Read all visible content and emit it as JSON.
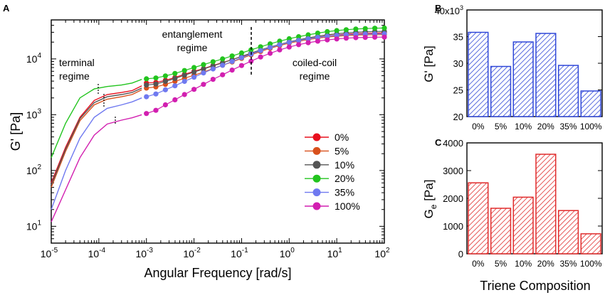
{
  "chart_data": [
    {
      "panel_label": "A",
      "type": "line",
      "xscale": "log",
      "yscale": "log",
      "xlim": [
        1e-05,
        100
      ],
      "ylim": [
        5,
        50000
      ],
      "xlabel": "Angular Frequency [rad/s]",
      "ylabel": "G' [Pa]",
      "x_tick_labels": [
        {
          "base": "10",
          "exp": "-5"
        },
        {
          "base": "10",
          "exp": "-4"
        },
        {
          "base": "10",
          "exp": "-3"
        },
        {
          "base": "10",
          "exp": "-2"
        },
        {
          "base": "10",
          "exp": "-1"
        },
        {
          "base": "10",
          "exp": "0"
        },
        {
          "base": "10",
          "exp": "1"
        },
        {
          "base": "10",
          "exp": "2"
        }
      ],
      "y_tick_labels": [
        {
          "base": "10",
          "exp": "1"
        },
        {
          "base": "10",
          "exp": "2"
        },
        {
          "base": "10",
          "exp": "3"
        },
        {
          "base": "10",
          "exp": "4"
        }
      ],
      "annotations": [
        {
          "line1": "terminal",
          "line2": "regime"
        },
        {
          "line1": "entanglement",
          "line2": "regime"
        },
        {
          "line1": "coiled-coil",
          "line2": "regime"
        }
      ],
      "legend_position": "lower-right",
      "series": [
        {
          "name": "0%",
          "color": "#e8101e",
          "markers": {
            "x": [
              0.001,
              0.00158,
              0.00251,
              0.00398,
              0.00631,
              0.01,
              0.0158,
              0.0251,
              0.0398,
              0.0631,
              0.1,
              0.158,
              0.251,
              0.398,
              0.631,
              1.0,
              1.58,
              2.51,
              3.98,
              6.31,
              10,
              15.8,
              25.1,
              39.8,
              63.1,
              100
            ],
            "y": [
              3700,
              3800,
              4150,
              4650,
              5300,
              6000,
              6700,
              7600,
              8600,
              9700,
              11000,
              12500,
              14300,
              16000,
              18000,
              20000,
              21500,
              23000,
              24500,
              25800,
              26800,
              27800,
              28400,
              28800,
              29100,
              29300
            ]
          },
          "fit_curve": {
            "x": [
              1e-05,
              2e-05,
              4e-05,
              8e-05,
              0.00015,
              0.0003,
              0.0005,
              0.0008
            ],
            "y": [
              60,
              260,
              900,
              1800,
              2300,
              2500,
              2700,
              3300
            ]
          }
        },
        {
          "name": "5%",
          "color": "#d8501c",
          "markers": {
            "x": [
              0.001,
              0.00158,
              0.00251,
              0.00398,
              0.00631,
              0.01,
              0.0158,
              0.0251,
              0.0398,
              0.0631,
              0.1,
              0.158,
              0.251,
              0.398,
              0.631,
              1.0,
              1.58,
              2.51,
              3.98,
              6.31,
              10,
              15.8,
              25.1,
              39.8,
              63.1,
              100
            ],
            "y": [
              3000,
              3150,
              3500,
              3950,
              4500,
              5100,
              5800,
              6700,
              7700,
              8800,
              10200,
              11800,
              13600,
              15500,
              17300,
              19200,
              20800,
              22200,
              23500,
              24600,
              25500,
              26200,
              26700,
              27000,
              27200,
              27300
            ]
          },
          "fit_curve": {
            "x": [
              1e-05,
              2e-05,
              4e-05,
              8e-05,
              0.00015,
              0.0003,
              0.0005,
              0.0008
            ],
            "y": [
              50,
              220,
              780,
              1500,
              1900,
              2100,
              2300,
              2800
            ]
          }
        },
        {
          "name": "10%",
          "color": "#555555",
          "markers": {
            "x": [
              0.001,
              0.00158,
              0.00251,
              0.00398,
              0.00631,
              0.01,
              0.0158,
              0.0251,
              0.0398,
              0.0631,
              0.1,
              0.158,
              0.251,
              0.398,
              0.631,
              1.0,
              1.58,
              2.51,
              3.98,
              6.31,
              10,
              15.8,
              25.1,
              39.8,
              63.1,
              100
            ],
            "y": [
              3400,
              3550,
              3950,
              4450,
              5100,
              5800,
              6600,
              7500,
              8500,
              9700,
              11100,
              12700,
              14500,
              16300,
              18200,
              20200,
              22000,
              23800,
              25500,
              27000,
              28200,
              29200,
              30000,
              30600,
              31000,
              31200
            ]
          },
          "fit_curve": {
            "x": [
              1e-05,
              2e-05,
              4e-05,
              8e-05,
              0.00015,
              0.0003,
              0.0005,
              0.0008
            ],
            "y": [
              55,
              240,
              850,
              1650,
              2100,
              2300,
              2500,
              3000
            ]
          }
        },
        {
          "name": "20%",
          "color": "#22c41e",
          "markers": {
            "x": [
              0.001,
              0.00158,
              0.00251,
              0.00398,
              0.00631,
              0.01,
              0.0158,
              0.0251,
              0.0398,
              0.0631,
              0.1,
              0.158,
              0.251,
              0.398,
              0.631,
              1.0,
              1.58,
              2.51,
              3.98,
              6.31,
              10,
              15.8,
              25.1,
              39.8,
              63.1,
              100
            ],
            "y": [
              4400,
              4550,
              4950,
              5500,
              6200,
              7000,
              7900,
              8900,
              10000,
              11300,
              12800,
              14500,
              16500,
              18600,
              20800,
              23000,
              25000,
              27000,
              29000,
              30800,
              32200,
              33400,
              34300,
              35000,
              35500,
              35800
            ]
          },
          "fit_curve": {
            "x": [
              1e-05,
              2e-05,
              4e-05,
              8e-05,
              0.00015,
              0.0003,
              0.0005,
              0.0008
            ],
            "y": [
              170,
              700,
              2000,
              2900,
              3200,
              3400,
              3700,
              4300
            ]
          }
        },
        {
          "name": "35%",
          "color": "#6f79f0",
          "markers": {
            "x": [
              0.001,
              0.00158,
              0.00251,
              0.00398,
              0.00631,
              0.01,
              0.0158,
              0.0251,
              0.0398,
              0.0631,
              0.1,
              0.158,
              0.251,
              0.398,
              0.631,
              1.0,
              1.58,
              2.51,
              3.98,
              6.31,
              10,
              15.8,
              25.1,
              39.8,
              63.1,
              100
            ],
            "y": [
              2100,
              2350,
              2800,
              3300,
              3950,
              4700,
              5600,
              6600,
              7700,
              9000,
              10500,
              12200,
              14100,
              16000,
              17900,
              19800,
              21400,
              22900,
              24300,
              25500,
              26400,
              27100,
              27600,
              27900,
              28100,
              28200
            ]
          },
          "fit_curve": {
            "x": [
              1e-05,
              2e-05,
              4e-05,
              8e-05,
              0.00015,
              0.0003,
              0.0005,
              0.0008
            ],
            "y": [
              20,
              100,
              380,
              900,
              1300,
              1500,
              1700,
              2000
            ]
          }
        },
        {
          "name": "100%",
          "color": "#d21fb0",
          "markers": {
            "x": [
              0.001,
              0.00158,
              0.00251,
              0.00398,
              0.00631,
              0.01,
              0.0158,
              0.0251,
              0.0398,
              0.0631,
              0.1,
              0.158,
              0.251,
              0.398,
              0.631,
              1.0,
              1.58,
              2.51,
              3.98,
              6.31,
              10,
              15.8,
              25.1,
              39.8,
              63.1,
              100
            ],
            "y": [
              1050,
              1200,
              1500,
              1850,
              2300,
              2850,
              3500,
              4300,
              5200,
              6300,
              7600,
              9100,
              10800,
              12600,
              14500,
              16300,
              18000,
              19500,
              20800,
              21900,
              22800,
              23500,
              24000,
              24300,
              24500,
              24600
            ]
          },
          "fit_curve": {
            "x": [
              1e-05,
              2e-05,
              4e-05,
              8e-05,
              0.00015,
              0.0003,
              0.0005,
              0.0008
            ],
            "y": [
              12,
              45,
              170,
              430,
              680,
              800,
              880,
              1000
            ]
          }
        }
      ]
    },
    {
      "panel_label": "B",
      "type": "bar",
      "categories": [
        "0%",
        "5%",
        "10%",
        "20%",
        "35%",
        "100%"
      ],
      "values": [
        35.8,
        29.4,
        34.0,
        35.6,
        29.6,
        24.8
      ],
      "ylabel": "G' [Pa]",
      "ylim": [
        20,
        40
      ],
      "y_multiplier_label": {
        "base": "40x10",
        "exp": "3"
      },
      "y_tick_labels": [
        "35",
        "30",
        "25",
        "20"
      ],
      "color": "#2f47d8",
      "hatch": "diagonal"
    },
    {
      "panel_label": "C",
      "type": "bar",
      "categories": [
        "0%",
        "5%",
        "10%",
        "20%",
        "35%",
        "100%"
      ],
      "values": [
        2560,
        1640,
        2040,
        3590,
        1560,
        720
      ],
      "ylabel_main": "G",
      "ylabel_sub": "e",
      "ylabel_unit": " [Pa]",
      "xlabel": "Triene Composition",
      "ylim": [
        0,
        4000
      ],
      "y_tick_labels": [
        "4000",
        "3000",
        "2000",
        "1000",
        "0"
      ],
      "color": "#e02b2b",
      "hatch": "diagonal"
    }
  ]
}
